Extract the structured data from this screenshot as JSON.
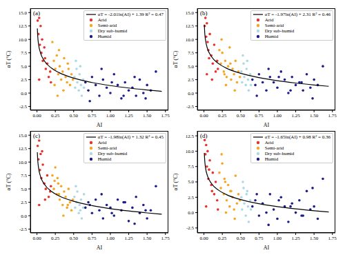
{
  "chart_data": [
    {
      "type": "scatter",
      "title": "(a)",
      "x_label": "AI",
      "y_label": "αT (°C)",
      "grid": false,
      "legend": "upper right",
      "xlim": [
        -0.09,
        1.79
      ],
      "xticks": [
        {
          "value": 0,
          "label": "0.00"
        },
        0.25,
        {
          "value": 0.5,
          "label": "0.50"
        },
        0.75,
        {
          "value": 1,
          "label": "1.00"
        },
        1.25,
        {
          "value": 1.5,
          "label": "1.50"
        },
        1.75
      ],
      "ylim": [
        -3.2,
        15.8
      ],
      "yticks": [
        -2.5,
        {
          "value": 0,
          "label": "0.0"
        },
        2.5,
        {
          "value": 5,
          "label": "5.0"
        },
        7.5,
        {
          "value": 10,
          "label": "10.0"
        },
        12.5,
        {
          "value": 15,
          "label": "15.0"
        }
      ],
      "series": [
        {
          "name": "αT = -2.01ln(AI) + 1.39   R² = 0.47",
          "type": "line",
          "color": "#000000",
          "x": [
            0.005,
            0.01,
            0.02,
            0.05,
            0.1,
            0.2,
            0.3,
            0.5,
            0.75,
            1.0,
            1.25,
            1.5,
            1.7
          ],
          "values": [
            12.04,
            10.65,
            9.25,
            7.41,
            6.02,
            4.62,
            3.81,
            2.78,
            1.97,
            1.39,
            0.94,
            0.58,
            0.32
          ]
        },
        {
          "name": "Arid",
          "color": "#e8312a",
          "x": [
            0.01,
            0.02,
            0.03,
            0.04,
            0.05,
            0.06,
            0.08,
            0.1,
            0.12,
            0.14,
            0.16,
            0.18,
            0.03,
            0.07,
            0.11,
            0.19
          ],
          "values": [
            13.5,
            11.0,
            14.0,
            9.0,
            12.5,
            7.5,
            6.0,
            8.5,
            4.5,
            5.5,
            3.0,
            4.0,
            2.5,
            10.0,
            6.5,
            2.0
          ]
        },
        {
          "name": "Semi-arid",
          "color": "#f5a623",
          "x": [
            0.21,
            0.23,
            0.25,
            0.27,
            0.29,
            0.31,
            0.33,
            0.35,
            0.37,
            0.39,
            0.41,
            0.43,
            0.45,
            0.47,
            0.49,
            0.24,
            0.3,
            0.36,
            0.42,
            0.28
          ],
          "values": [
            9.5,
            6.0,
            4.5,
            7.0,
            3.5,
            5.0,
            2.5,
            4.0,
            6.5,
            3.0,
            2.0,
            4.5,
            1.5,
            3.5,
            2.5,
            1.5,
            8.0,
            0.5,
            5.5,
            -0.5
          ]
        },
        {
          "name": "Dry sub-humid",
          "color": "#add8e6",
          "x": [
            0.51,
            0.52,
            0.54,
            0.55,
            0.57,
            0.58,
            0.6,
            0.61,
            0.63,
            0.64,
            0.53,
            0.59
          ],
          "values": [
            3.0,
            1.0,
            4.5,
            2.0,
            0.5,
            3.5,
            1.5,
            -0.5,
            2.5,
            1.0,
            6.0,
            5.0
          ]
        },
        {
          "name": "Humid",
          "color": "#1c1c8c",
          "x": [
            0.66,
            0.7,
            0.75,
            0.8,
            0.85,
            0.9,
            0.95,
            1.0,
            1.05,
            1.1,
            1.15,
            1.2,
            1.25,
            1.3,
            1.35,
            1.4,
            1.45,
            1.5,
            1.55,
            1.62,
            0.72,
            0.88,
            1.02,
            1.18,
            1.33,
            1.48
          ],
          "values": [
            2.0,
            0.5,
            3.0,
            1.5,
            -0.5,
            2.5,
            1.0,
            0.0,
            3.5,
            1.5,
            -1.0,
            2.0,
            0.5,
            1.0,
            -0.5,
            2.5,
            0.0,
            1.5,
            0.5,
            4.0,
            -1.5,
            4.5,
            2.0,
            -0.5,
            3.0,
            -1.0
          ]
        }
      ]
    },
    {
      "type": "scatter",
      "title": "(b)",
      "x_label": "AI",
      "y_label": "αT (°C)",
      "grid": false,
      "legend": "upper right",
      "xlim": [
        -0.09,
        1.79
      ],
      "xticks": [
        {
          "value": 0,
          "label": "0.00"
        },
        0.25,
        {
          "value": 0.5,
          "label": "0.50"
        },
        0.75,
        {
          "value": 1,
          "label": "1.00"
        },
        1.25,
        {
          "value": 1.5,
          "label": "1.50"
        },
        1.75
      ],
      "ylim": [
        -3.2,
        15.8
      ],
      "yticks": [
        -2.5,
        {
          "value": 0,
          "label": "0.0"
        },
        2.5,
        {
          "value": 5,
          "label": "5.0"
        },
        7.5,
        {
          "value": 10,
          "label": "10.0"
        },
        12.5,
        {
          "value": 15,
          "label": "15.0"
        }
      ],
      "series": [
        {
          "name": "αT = -1.97ln(AI) + 2.31   R² = 0.46",
          "type": "line",
          "color": "#000000",
          "x": [
            0.005,
            0.01,
            0.02,
            0.05,
            0.1,
            0.2,
            0.3,
            0.5,
            0.75,
            1.0,
            1.25,
            1.5,
            1.7
          ],
          "values": [
            12.75,
            11.38,
            10.02,
            8.21,
            6.85,
            5.48,
            4.68,
            3.68,
            2.88,
            2.31,
            1.87,
            1.51,
            1.26
          ]
        },
        {
          "name": "Arid",
          "color": "#e8312a",
          "x": [
            0.01,
            0.02,
            0.03,
            0.04,
            0.05,
            0.06,
            0.08,
            0.1,
            0.12,
            0.14,
            0.16,
            0.18,
            0.04,
            0.07,
            0.11,
            0.19
          ],
          "values": [
            12.5,
            14.0,
            10.5,
            13.0,
            9.5,
            8.0,
            11.0,
            7.0,
            5.5,
            9.0,
            4.0,
            6.0,
            3.5,
            6.5,
            2.5,
            4.5
          ]
        },
        {
          "name": "Semi-arid",
          "color": "#f5a623",
          "x": [
            0.21,
            0.23,
            0.25,
            0.27,
            0.29,
            0.31,
            0.33,
            0.35,
            0.37,
            0.39,
            0.41,
            0.43,
            0.45,
            0.47,
            0.49,
            0.24,
            0.3,
            0.36,
            0.42,
            0.28
          ],
          "values": [
            8.0,
            5.5,
            7.5,
            4.0,
            6.0,
            3.0,
            5.0,
            8.5,
            2.5,
            4.5,
            3.5,
            6.0,
            2.0,
            4.0,
            3.0,
            10.0,
            1.5,
            5.5,
            0.5,
            3.5
          ]
        },
        {
          "name": "Dry sub-humid",
          "color": "#add8e6",
          "x": [
            0.51,
            0.52,
            0.54,
            0.55,
            0.57,
            0.58,
            0.6,
            0.61,
            0.63,
            0.64,
            0.53,
            0.59
          ],
          "values": [
            4.0,
            2.0,
            5.5,
            3.0,
            1.5,
            4.5,
            2.5,
            0.5,
            3.5,
            1.5,
            7.0,
            6.0
          ]
        },
        {
          "name": "Humid",
          "color": "#1c1c8c",
          "x": [
            0.66,
            0.7,
            0.75,
            0.8,
            0.85,
            0.9,
            0.95,
            1.0,
            1.05,
            1.1,
            1.15,
            1.2,
            1.25,
            1.3,
            1.35,
            1.4,
            1.45,
            1.5,
            1.55,
            1.62,
            0.72,
            0.88,
            1.02,
            1.18,
            1.33,
            1.48
          ],
          "values": [
            2.5,
            1.5,
            3.5,
            2.0,
            0.5,
            3.0,
            2.0,
            1.0,
            4.0,
            2.5,
            0.0,
            3.0,
            1.5,
            2.0,
            0.5,
            3.5,
            1.0,
            2.5,
            1.5,
            5.0,
            -0.5,
            4.5,
            3.0,
            0.5,
            2.0,
            -1.0
          ]
        }
      ]
    },
    {
      "type": "scatter",
      "title": "(c)",
      "x_label": "AI",
      "y_label": "αT (°C)",
      "grid": false,
      "legend": "upper right",
      "xlim": [
        -0.09,
        1.79
      ],
      "xticks": [
        {
          "value": 0,
          "label": "0.00"
        },
        0.25,
        {
          "value": 0.5,
          "label": "0.50"
        },
        0.75,
        {
          "value": 1,
          "label": "1.00"
        },
        1.25,
        {
          "value": 1.5,
          "label": "1.50"
        },
        1.75
      ],
      "ylim": [
        -3.2,
        15.8
      ],
      "yticks": [
        -2.5,
        {
          "value": 0,
          "label": "0.0"
        },
        2.5,
        {
          "value": 5,
          "label": "5.0"
        },
        7.5,
        {
          "value": 10,
          "label": "10.0"
        },
        12.5,
        {
          "value": 15,
          "label": "15.0"
        }
      ],
      "series": [
        {
          "name": "αT = -1.98ln(AI) + 1.32   R² = 0.45",
          "type": "line",
          "color": "#000000",
          "x": [
            0.005,
            0.01,
            0.02,
            0.05,
            0.1,
            0.2,
            0.3,
            0.5,
            0.75,
            1.0,
            1.25,
            1.5,
            1.7
          ],
          "values": [
            11.81,
            10.44,
            9.07,
            7.25,
            5.88,
            4.51,
            3.7,
            2.69,
            1.89,
            1.32,
            0.88,
            0.52,
            0.27
          ]
        },
        {
          "name": "Arid",
          "color": "#e8312a",
          "x": [
            0.01,
            0.02,
            0.03,
            0.04,
            0.05,
            0.06,
            0.08,
            0.1,
            0.12,
            0.14,
            0.16,
            0.18,
            0.03,
            0.07,
            0.11,
            0.19
          ],
          "values": [
            13.0,
            10.5,
            14.0,
            8.5,
            11.5,
            7.0,
            9.5,
            6.0,
            5.0,
            7.5,
            3.5,
            4.5,
            2.0,
            12.0,
            3.0,
            5.5
          ]
        },
        {
          "name": "Semi-arid",
          "color": "#f5a623",
          "x": [
            0.21,
            0.23,
            0.25,
            0.27,
            0.29,
            0.31,
            0.33,
            0.35,
            0.37,
            0.39,
            0.41,
            0.43,
            0.45,
            0.47,
            0.49,
            0.24,
            0.3,
            0.36,
            0.42,
            0.28
          ],
          "values": [
            7.5,
            5.0,
            9.0,
            4.0,
            6.0,
            3.0,
            5.5,
            2.0,
            4.5,
            3.5,
            1.5,
            5.0,
            2.5,
            1.0,
            3.0,
            6.5,
            4.0,
            0.0,
            2.0,
            7.0
          ]
        },
        {
          "name": "Dry sub-humid",
          "color": "#add8e6",
          "x": [
            0.51,
            0.52,
            0.54,
            0.55,
            0.57,
            0.58,
            0.6,
            0.61,
            0.63,
            0.64,
            0.53,
            0.59
          ],
          "values": [
            3.5,
            1.5,
            2.5,
            4.5,
            0.5,
            2.0,
            3.0,
            -0.5,
            1.5,
            4.0,
            5.5,
            1.0
          ]
        },
        {
          "name": "Humid",
          "color": "#1c1c8c",
          "x": [
            0.66,
            0.7,
            0.75,
            0.8,
            0.85,
            0.9,
            0.95,
            1.0,
            1.05,
            1.1,
            1.15,
            1.2,
            1.25,
            1.3,
            1.35,
            1.4,
            1.45,
            1.5,
            1.55,
            1.62,
            0.72,
            0.88,
            1.02,
            1.18,
            1.33,
            1.48
          ],
          "values": [
            1.5,
            2.5,
            0.5,
            3.0,
            1.0,
            -0.5,
            2.0,
            1.5,
            0.0,
            3.0,
            1.0,
            2.5,
            -1.0,
            1.5,
            3.5,
            0.5,
            2.0,
            -0.5,
            1.0,
            5.5,
            2.0,
            4.0,
            0.5,
            2.5,
            -1.5,
            1.0
          ]
        }
      ]
    },
    {
      "type": "scatter",
      "title": "(d)",
      "x_label": "AI",
      "y_label": "αT (°C)",
      "grid": false,
      "legend": "upper right",
      "xlim": [
        -0.09,
        1.79
      ],
      "xticks": [
        {
          "value": 0,
          "label": "0.00"
        },
        0.25,
        {
          "value": 0.5,
          "label": "0.50"
        },
        0.75,
        {
          "value": 1,
          "label": "1.00"
        },
        1.25,
        {
          "value": 1.5,
          "label": "1.50"
        },
        1.75
      ],
      "ylim": [
        -3.3,
        13.3
      ],
      "yticks": [
        -2.5,
        {
          "value": 0,
          "label": "0.0"
        },
        2.5,
        {
          "value": 5,
          "label": "5.0"
        },
        7.5,
        {
          "value": 10,
          "label": "10.0"
        },
        12.5
      ],
      "series": [
        {
          "name": "αT = -1.65ln(AI) + 0.98   R² = 0.36",
          "type": "line",
          "color": "#000000",
          "x": [
            0.005,
            0.01,
            0.02,
            0.05,
            0.1,
            0.2,
            0.3,
            0.5,
            0.75,
            1.0,
            1.25,
            1.5,
            1.7
          ],
          "values": [
            9.72,
            8.58,
            7.43,
            5.92,
            4.78,
            3.64,
            2.97,
            2.12,
            1.45,
            0.98,
            0.61,
            0.31,
            0.1
          ]
        },
        {
          "name": "Arid",
          "color": "#e8312a",
          "x": [
            0.01,
            0.02,
            0.03,
            0.04,
            0.05,
            0.06,
            0.08,
            0.1,
            0.12,
            0.14,
            0.16,
            0.18,
            0.03,
            0.07,
            0.11,
            0.19
          ],
          "values": [
            11.8,
            9.5,
            11.0,
            7.5,
            10.0,
            5.5,
            8.5,
            4.5,
            6.5,
            3.0,
            5.0,
            2.0,
            1.0,
            7.0,
            3.5,
            0.5
          ]
        },
        {
          "name": "Semi-arid",
          "color": "#f5a623",
          "x": [
            0.21,
            0.23,
            0.25,
            0.27,
            0.29,
            0.31,
            0.33,
            0.35,
            0.37,
            0.39,
            0.41,
            0.43,
            0.45,
            0.47,
            0.49,
            0.24,
            0.3,
            0.36,
            0.42,
            0.28
          ],
          "values": [
            6.5,
            4.0,
            8.0,
            3.0,
            5.0,
            2.0,
            4.5,
            1.0,
            3.5,
            2.5,
            0.5,
            6.0,
            1.5,
            3.0,
            2.0,
            9.5,
            0.0,
            3.5,
            -1.0,
            5.5
          ]
        },
        {
          "name": "Dry sub-humid",
          "color": "#add8e6",
          "x": [
            0.51,
            0.52,
            0.54,
            0.55,
            0.57,
            0.58,
            0.6,
            0.61,
            0.63,
            0.64,
            0.53,
            0.59
          ],
          "values": [
            2.5,
            0.5,
            4.0,
            1.5,
            -0.5,
            3.0,
            1.0,
            -1.5,
            2.0,
            0.5,
            5.0,
            3.5
          ]
        },
        {
          "name": "Humid",
          "color": "#1c1c8c",
          "x": [
            0.66,
            0.7,
            0.75,
            0.8,
            0.85,
            0.9,
            0.95,
            1.0,
            1.05,
            1.1,
            1.15,
            1.2,
            1.25,
            1.3,
            1.35,
            1.4,
            1.45,
            1.5,
            1.55,
            1.62,
            0.72,
            0.88,
            1.02,
            1.18,
            1.33,
            1.48
          ],
          "values": [
            1.0,
            2.0,
            -0.5,
            1.5,
            0.0,
            3.0,
            0.5,
            -1.0,
            2.5,
            1.0,
            -1.5,
            1.5,
            0.0,
            2.0,
            -0.5,
            3.5,
            0.5,
            1.0,
            -1.0,
            5.5,
            3.0,
            -2.0,
            2.0,
            1.0,
            -0.5,
            4.0
          ]
        }
      ]
    }
  ]
}
